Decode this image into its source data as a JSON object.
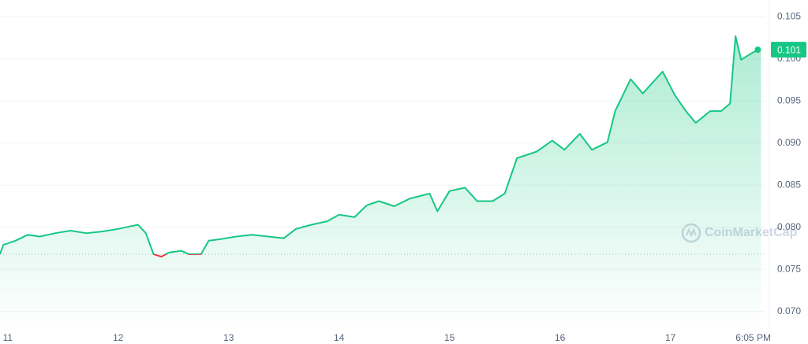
{
  "chart_data": {
    "type": "line",
    "x": [
      10.93,
      10.96,
      11.07,
      11.18,
      11.29,
      11.43,
      11.57,
      11.71,
      11.86,
      12.0,
      12.07,
      12.18,
      12.25,
      12.32,
      12.39,
      12.46,
      12.57,
      12.64,
      12.75,
      12.82,
      12.93,
      13.07,
      13.21,
      13.36,
      13.5,
      13.61,
      13.75,
      13.89,
      14.0,
      14.14,
      14.25,
      14.36,
      14.5,
      14.64,
      14.82,
      14.89,
      15.0,
      15.14,
      15.25,
      15.39,
      15.5,
      15.61,
      15.79,
      15.93,
      16.04,
      16.18,
      16.29,
      16.43,
      16.5,
      16.64,
      16.75,
      16.93,
      17.04,
      17.14,
      17.23,
      17.36,
      17.46,
      17.54,
      17.59,
      17.64,
      17.75,
      17.82
    ],
    "series": [
      {
        "color": "#16c784",
        "below_color": "#ea3943",
        "values": [
          0.0768,
          0.0779,
          0.0784,
          0.0791,
          0.0789,
          0.0793,
          0.0796,
          0.0793,
          0.0795,
          0.0798,
          0.08,
          0.0803,
          0.0793,
          0.0768,
          0.0765,
          0.077,
          0.0772,
          0.0768,
          0.0768,
          0.0784,
          0.0786,
          0.0789,
          0.0791,
          0.0789,
          0.0787,
          0.0798,
          0.0803,
          0.0807,
          0.0815,
          0.0812,
          0.0826,
          0.0831,
          0.0825,
          0.0834,
          0.084,
          0.0819,
          0.0843,
          0.0847,
          0.0831,
          0.0831,
          0.084,
          0.0882,
          0.089,
          0.0903,
          0.0892,
          0.0911,
          0.0892,
          0.0901,
          0.0938,
          0.0976,
          0.0959,
          0.0985,
          0.0957,
          0.0938,
          0.0924,
          0.0938,
          0.0938,
          0.0947,
          0.1027,
          0.0999,
          0.1008,
          0.1011
        ]
      }
    ],
    "baseline": 0.0768,
    "price_tag": "0.101",
    "watermark": "CoinMarketCap",
    "xlim": [
      10.93,
      17.86
    ],
    "xticks": [
      11,
      12,
      13,
      14,
      15,
      16,
      17,
      {
        "value": 17.75,
        "label": "6:05 PM"
      }
    ],
    "ylim": [
      0.068,
      0.107
    ],
    "yticks": [
      0.07,
      0.075,
      0.08,
      0.085,
      0.09,
      0.095,
      0.1,
      0.105
    ],
    "ytick_labels": [
      "0.070",
      "0.075",
      "0.080",
      "0.085",
      "0.090",
      "0.095",
      "0.100",
      "0.105"
    ],
    "grid": true
  }
}
